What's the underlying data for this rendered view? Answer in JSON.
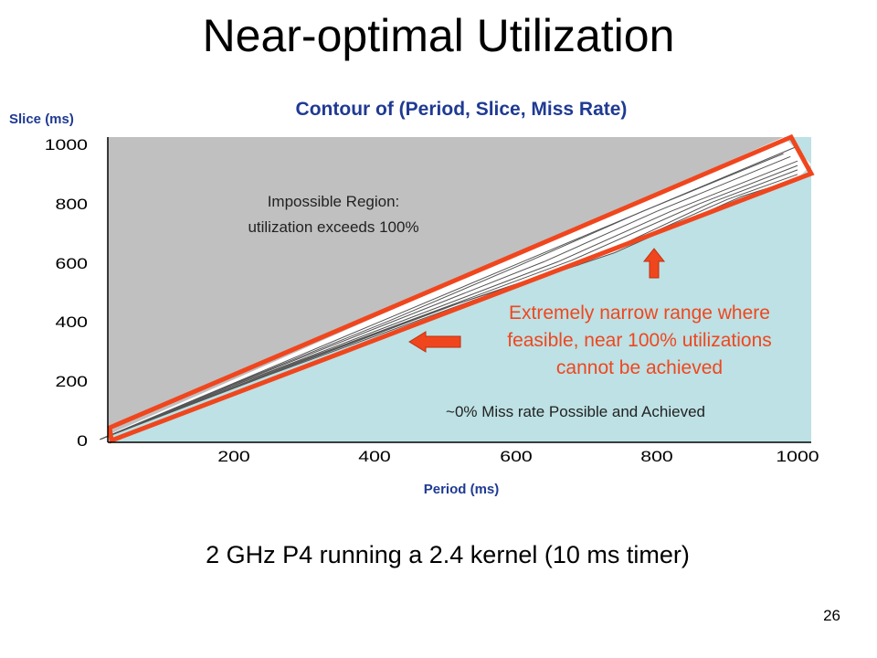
{
  "slide": {
    "title": "Near-optimal Utilization",
    "subtitle": "2 GHz P4 running a 2.4 kernel (10 ms timer)",
    "page_number": "26"
  },
  "colors": {
    "impossible_region": "#c0c0c0",
    "feasible_region": "#bde1e4",
    "highlight": "#f0461e",
    "contour_line": "#555555",
    "axis_label": "#1f3a93"
  },
  "chart_data": {
    "type": "heatmap",
    "title": "Contour of (Period, Slice, Miss Rate)",
    "xlabel": "Period (ms)",
    "ylabel": "Slice (ms)",
    "xlim": [
      10,
      1000
    ],
    "ylim": [
      0,
      1000
    ],
    "x_ticks": [
      200,
      400,
      600,
      800,
      1000
    ],
    "y_ticks": [
      0,
      200,
      400,
      600,
      800,
      1000
    ],
    "regions": [
      {
        "name": "impossible",
        "label_lines": [
          "Impossible Region:",
          "utilization exceeds 100%"
        ],
        "x": 300,
        "y": 780
      },
      {
        "name": "feasible",
        "label_lines": [
          "~0% Miss rate Possible and Achieved"
        ],
        "x": 750,
        "y": 110
      }
    ],
    "contours": [
      {
        "slice_fraction": 1.0,
        "points": [
          [
            10,
            10
          ],
          [
            200,
            200
          ],
          [
            400,
            400
          ],
          [
            600,
            600
          ],
          [
            800,
            800
          ],
          [
            1000,
            1000
          ]
        ]
      },
      {
        "slice_fraction": 0.99,
        "points": [
          [
            10,
            10
          ],
          [
            200,
            198
          ],
          [
            420,
            410
          ],
          [
            600,
            592
          ],
          [
            780,
            780
          ],
          [
            980,
            975
          ]
        ]
      },
      {
        "slice_fraction": 0.98,
        "points": [
          [
            10,
            10
          ],
          [
            200,
            196
          ],
          [
            430,
            412
          ],
          [
            640,
            610
          ],
          [
            800,
            780
          ],
          [
            990,
            965
          ]
        ]
      },
      {
        "slice_fraction": 0.97,
        "points": [
          [
            10,
            10
          ],
          [
            210,
            202
          ],
          [
            450,
            420
          ],
          [
            660,
            610
          ],
          [
            820,
            780
          ],
          [
            1000,
            950
          ]
        ]
      },
      {
        "slice_fraction": 0.96,
        "points": [
          [
            10,
            10
          ],
          [
            220,
            210
          ],
          [
            470,
            430
          ],
          [
            680,
            615
          ],
          [
            860,
            805
          ],
          [
            1000,
            935
          ]
        ]
      },
      {
        "slice_fraction": 0.95,
        "points": [
          [
            10,
            10
          ],
          [
            230,
            215
          ],
          [
            500,
            455
          ],
          [
            690,
            600
          ],
          [
            880,
            812
          ],
          [
            1000,
            920
          ]
        ]
      },
      {
        "slice_fraction": 0.94,
        "points": [
          [
            10,
            10
          ],
          [
            240,
            222
          ],
          [
            520,
            470
          ],
          [
            720,
            630
          ],
          [
            900,
            820
          ],
          [
            1000,
            905
          ]
        ]
      },
      {
        "slice_fraction": 0.93,
        "points": [
          [
            10,
            10
          ],
          [
            250,
            228
          ],
          [
            540,
            480
          ],
          [
            740,
            640
          ],
          [
            920,
            830
          ],
          [
            1000,
            890
          ]
        ]
      }
    ],
    "annotations": [
      {
        "name": "narrow-range",
        "lines": [
          "Extremely narrow range where",
          "feasible, near 100% utilizations",
          "cannot be achieved"
        ],
        "arrows": [
          "left",
          "up"
        ]
      }
    ]
  }
}
